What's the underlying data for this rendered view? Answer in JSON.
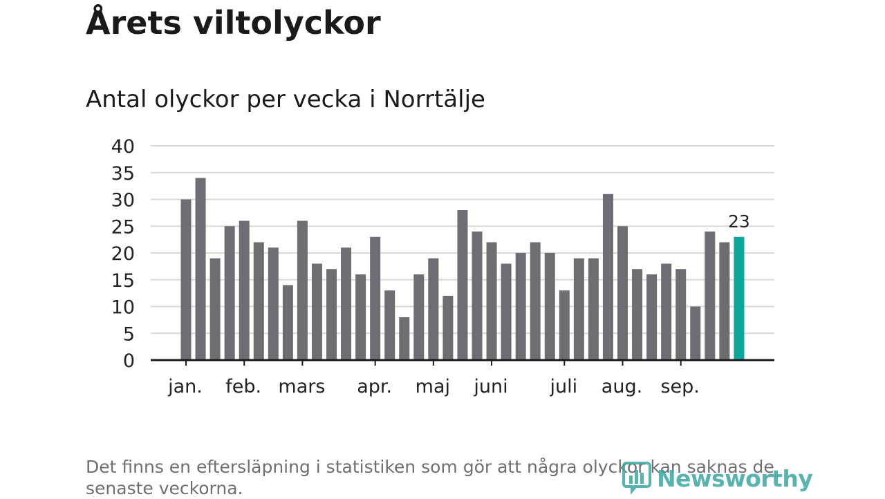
{
  "title": "Årets viltolyckor",
  "subtitle": "Antal olyckor per vecka i Norrtälje",
  "footnote": "Det finns en eftersläpning i statistiken som gör att några olyckor kan saknas de senaste veckorna.",
  "brand": "Newsworthy",
  "colors": {
    "bar": "#6e6d73",
    "highlight": "#0ea59c",
    "grid": "#d9d9d9",
    "axis": "#1a1a1a",
    "brand": "#3aa6a0"
  },
  "chart_data": {
    "type": "bar",
    "title": "Antal olyckor per vecka i Norrtälje",
    "xlabel": "",
    "ylabel": "",
    "ylim": [
      0,
      40
    ],
    "yticks": [
      0,
      5,
      10,
      15,
      20,
      25,
      30,
      35,
      40
    ],
    "grid": true,
    "values": [
      30,
      34,
      19,
      25,
      26,
      22,
      21,
      14,
      26,
      18,
      17,
      21,
      16,
      23,
      13,
      8,
      16,
      19,
      12,
      28,
      24,
      22,
      18,
      20,
      22,
      20,
      13,
      19,
      19,
      31,
      25,
      17,
      16,
      18,
      17,
      10,
      24,
      22,
      23
    ],
    "highlight_index": 38,
    "highlight_label": "23",
    "month_labels": [
      {
        "label": "jan.",
        "bar_index": 0
      },
      {
        "label": "feb.",
        "bar_index": 4
      },
      {
        "label": "mars",
        "bar_index": 8
      },
      {
        "label": "apr.",
        "bar_index": 13
      },
      {
        "label": "maj",
        "bar_index": 17
      },
      {
        "label": "juni",
        "bar_index": 21
      },
      {
        "label": "juli",
        "bar_index": 26
      },
      {
        "label": "aug.",
        "bar_index": 30
      },
      {
        "label": "sep.",
        "bar_index": 34
      }
    ]
  }
}
